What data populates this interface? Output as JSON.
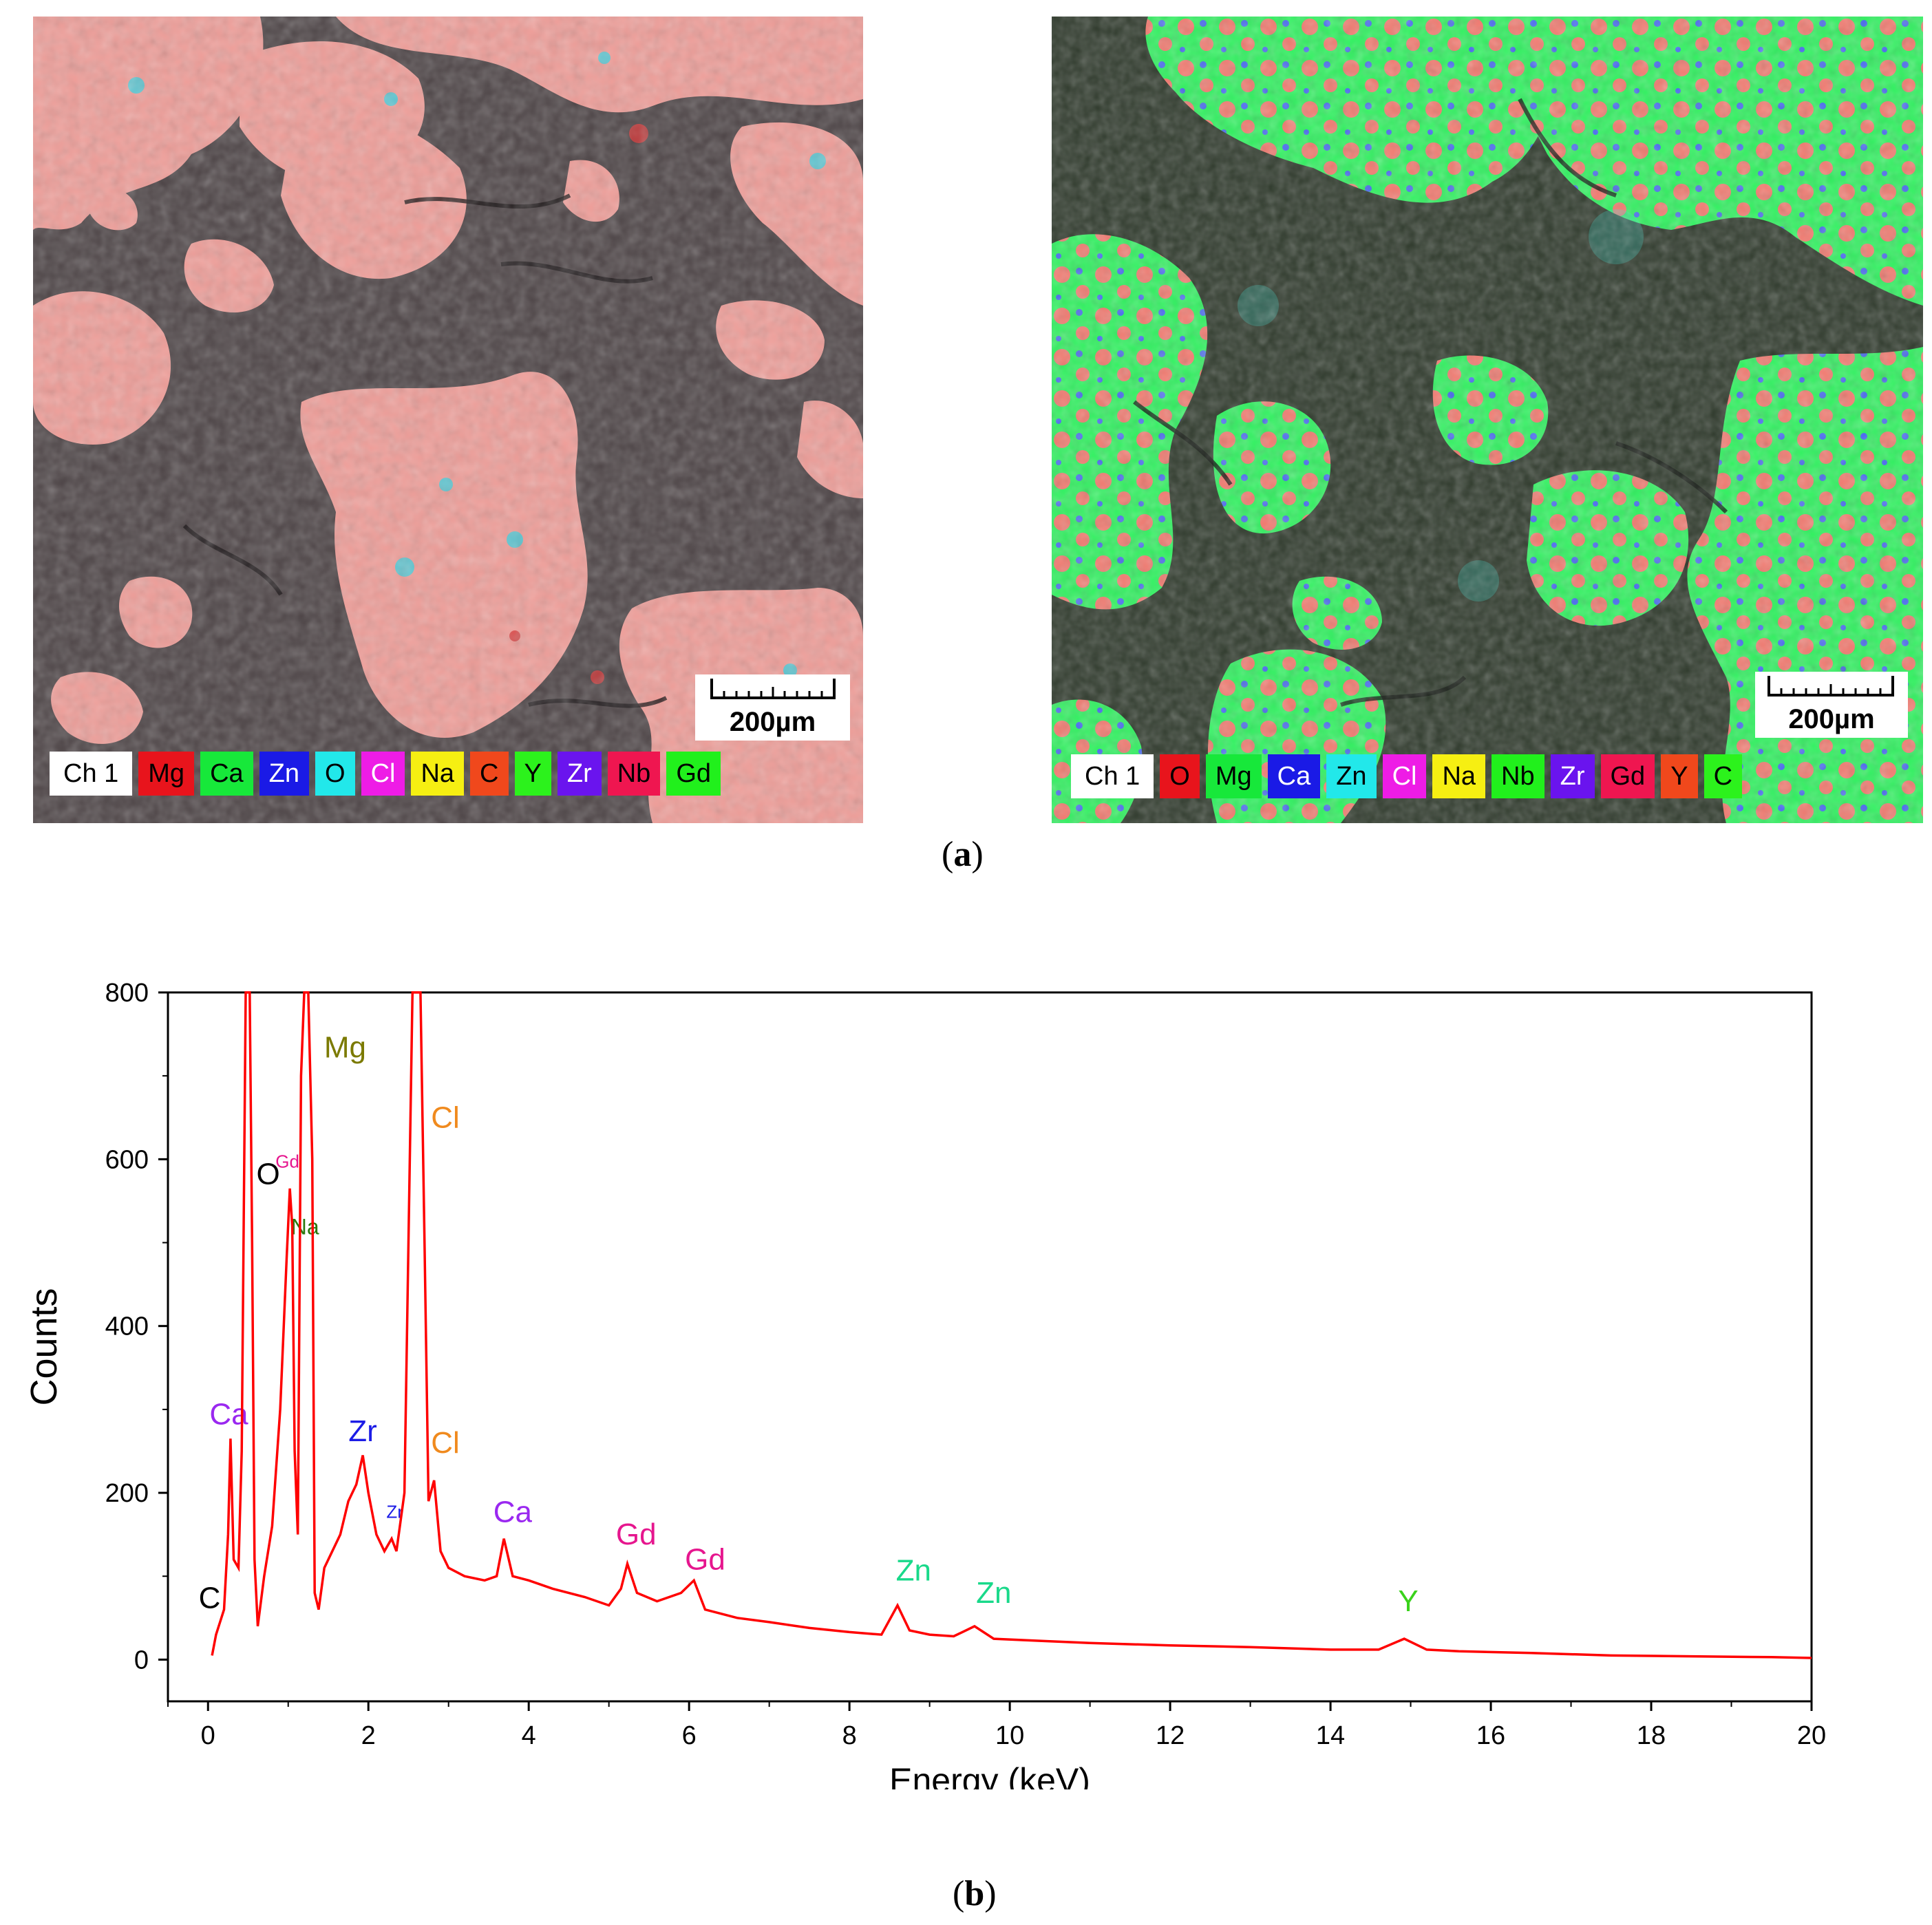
{
  "panel_a": {
    "caption_open": "(",
    "caption_letter": "a",
    "caption_close": ")",
    "maps": [
      {
        "scale_label": "200µm",
        "channel_label": "Ch 1",
        "legend": [
          {
            "label": "Mg",
            "bg": "#e8141c",
            "fg": "#000000"
          },
          {
            "label": "Ca",
            "bg": "#17e83a",
            "fg": "#000000"
          },
          {
            "label": "Zn",
            "bg": "#1a1ae6",
            "fg": "#ffffff"
          },
          {
            "label": "O",
            "bg": "#22e8ea",
            "fg": "#000000"
          },
          {
            "label": "Cl",
            "bg": "#ee1ce6",
            "fg": "#ffffff"
          },
          {
            "label": "Na",
            "bg": "#f6ef12",
            "fg": "#000000"
          },
          {
            "label": "C",
            "bg": "#f0481c",
            "fg": "#000000"
          },
          {
            "label": "Y",
            "bg": "#2cf21c",
            "fg": "#000000"
          },
          {
            "label": "Zr",
            "bg": "#6a14ee",
            "fg": "#ffffff"
          },
          {
            "label": "Nb",
            "bg": "#ef1650",
            "fg": "#000000"
          },
          {
            "label": "Gd",
            "bg": "#21f01c",
            "fg": "#000000"
          }
        ]
      },
      {
        "scale_label": "200µm",
        "channel_label": "Ch 1",
        "legend": [
          {
            "label": "O",
            "bg": "#e8141c",
            "fg": "#000000"
          },
          {
            "label": "Mg",
            "bg": "#17e83a",
            "fg": "#000000"
          },
          {
            "label": "Ca",
            "bg": "#1a1ae6",
            "fg": "#ffffff"
          },
          {
            "label": "Zn",
            "bg": "#22e8ea",
            "fg": "#000000"
          },
          {
            "label": "Cl",
            "bg": "#ee1ce6",
            "fg": "#ffffff"
          },
          {
            "label": "Na",
            "bg": "#f6ef12",
            "fg": "#000000"
          },
          {
            "label": "Nb",
            "bg": "#21f01c",
            "fg": "#000000"
          },
          {
            "label": "Zr",
            "bg": "#6a14ee",
            "fg": "#ffffff"
          },
          {
            "label": "Gd",
            "bg": "#ef1650",
            "fg": "#000000"
          },
          {
            "label": "Y",
            "bg": "#f0481c",
            "fg": "#000000"
          },
          {
            "label": "C",
            "bg": "#2cf21c",
            "fg": "#000000"
          }
        ]
      }
    ]
  },
  "panel_b": {
    "caption_open": "(",
    "caption_letter": "b",
    "caption_close": ")"
  },
  "chart_data": {
    "type": "line",
    "xlabel": "Energy (keV)",
    "ylabel": "Counts",
    "xlim": [
      -0.5,
      20
    ],
    "ylim": [
      -50,
      800
    ],
    "xticks": [
      0,
      2,
      4,
      6,
      8,
      10,
      12,
      14,
      16,
      18,
      20
    ],
    "yticks": [
      0,
      200,
      400,
      600,
      800
    ],
    "grid": false,
    "line_color": "#ff0000",
    "series": [
      {
        "x": [
          0.05,
          0.1,
          0.15,
          0.2,
          0.25,
          0.28,
          0.32,
          0.38,
          0.42,
          0.47,
          0.5,
          0.52,
          0.55,
          0.58,
          0.62,
          0.7,
          0.8,
          0.9,
          0.98,
          1.02,
          1.05,
          1.08,
          1.12,
          1.16,
          1.2,
          1.25,
          1.3,
          1.33,
          1.38,
          1.45,
          1.55,
          1.65,
          1.75,
          1.85,
          1.93,
          2.0,
          2.1,
          2.2,
          2.29,
          2.35,
          2.45,
          2.55,
          2.6,
          2.65,
          2.7,
          2.75,
          2.82,
          2.9,
          3.0,
          3.2,
          3.45,
          3.6,
          3.69,
          3.8,
          4.0,
          4.3,
          4.7,
          5.0,
          5.15,
          5.23,
          5.35,
          5.6,
          5.9,
          6.06,
          6.2,
          6.6,
          7.0,
          7.5,
          8.0,
          8.4,
          8.6,
          8.75,
          9.0,
          9.3,
          9.56,
          9.8,
          10.5,
          11.0,
          12.0,
          13.0,
          14.0,
          14.6,
          14.92,
          15.2,
          15.6,
          16.5,
          17.5,
          18.5,
          19.5,
          20.0
        ],
        "y": [
          5,
          30,
          45,
          60,
          150,
          265,
          120,
          110,
          250,
          800,
          800,
          800,
          500,
          120,
          40,
          100,
          160,
          300,
          480,
          565,
          520,
          250,
          150,
          700,
          800,
          800,
          600,
          80,
          60,
          110,
          130,
          150,
          190,
          210,
          245,
          200,
          150,
          130,
          145,
          130,
          200,
          800,
          800,
          800,
          500,
          190,
          215,
          130,
          110,
          100,
          95,
          100,
          145,
          100,
          95,
          85,
          75,
          65,
          85,
          115,
          80,
          70,
          80,
          95,
          60,
          50,
          45,
          38,
          33,
          30,
          65,
          35,
          30,
          28,
          40,
          25,
          22,
          20,
          17,
          15,
          12,
          12,
          25,
          12,
          10,
          8,
          5,
          4,
          3,
          2
        ]
      }
    ],
    "annotations": [
      {
        "text": "O",
        "x": 0.75,
        "y": 570,
        "color": "#000000",
        "size": "large"
      },
      {
        "text": "Gd",
        "x": 0.99,
        "y": 590,
        "color": "#e6168e",
        "size": "small"
      },
      {
        "text": "Na",
        "x": 1.21,
        "y": 510,
        "color": "#2a7a10",
        "size": "medium"
      },
      {
        "text": "Mg",
        "x": 1.71,
        "y": 722,
        "color": "#7b7a00",
        "size": "large"
      },
      {
        "text": "Cl",
        "x": 2.96,
        "y": 638,
        "color": "#f08a1e",
        "size": "large"
      },
      {
        "text": "Ca",
        "x": 0.26,
        "y": 282,
        "color": "#9a28f0",
        "size": "large"
      },
      {
        "text": "Zr",
        "x": 1.93,
        "y": 262,
        "color": "#1c1ce6",
        "size": "large"
      },
      {
        "text": "Zr",
        "x": 2.33,
        "y": 170,
        "color": "#1c1ce6",
        "size": "small"
      },
      {
        "text": "Cl",
        "x": 2.96,
        "y": 248,
        "color": "#f08a1e",
        "size": "large"
      },
      {
        "text": "Ca",
        "x": 3.8,
        "y": 165,
        "color": "#9a28f0",
        "size": "large"
      },
      {
        "text": "Gd",
        "x": 5.34,
        "y": 138,
        "color": "#e6168e",
        "size": "large"
      },
      {
        "text": "Gd",
        "x": 6.2,
        "y": 108,
        "color": "#e6168e",
        "size": "large"
      },
      {
        "text": "Zn",
        "x": 8.8,
        "y": 95,
        "color": "#19d98a",
        "size": "large"
      },
      {
        "text": "Zn",
        "x": 9.8,
        "y": 68,
        "color": "#19d98a",
        "size": "large"
      },
      {
        "text": "Y",
        "x": 14.97,
        "y": 58,
        "color": "#3ad21c",
        "size": "large"
      },
      {
        "text": "C",
        "x": 0.02,
        "y": 62,
        "color": "#000000",
        "size": "large"
      }
    ]
  }
}
